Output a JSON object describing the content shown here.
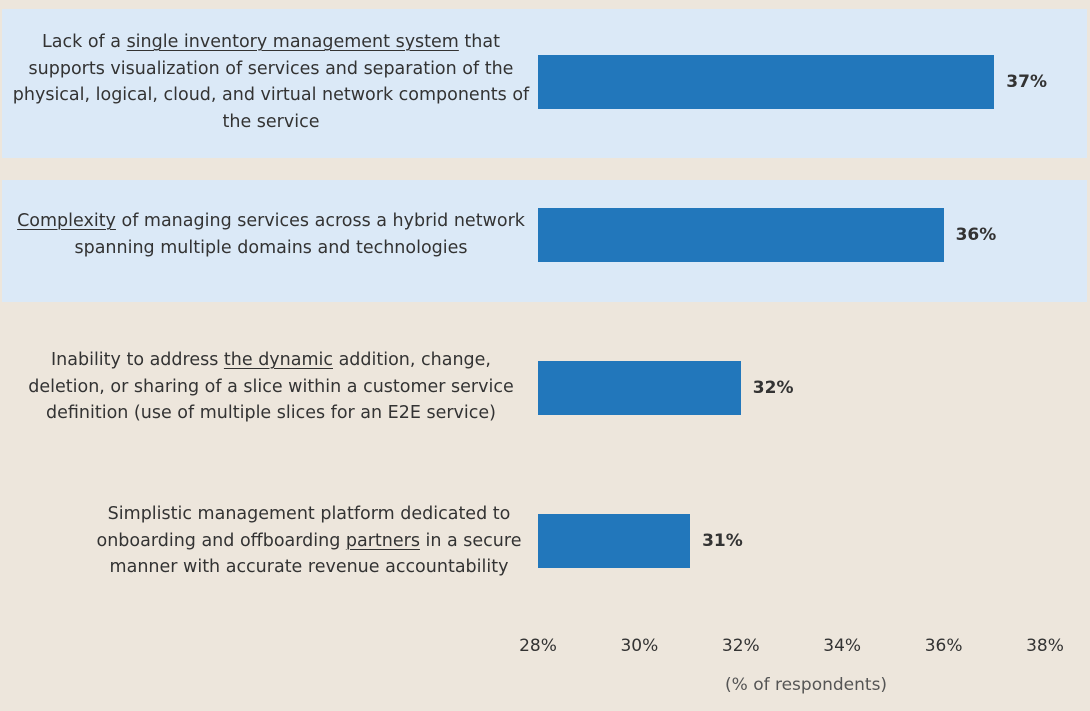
{
  "chart_data": {
    "type": "bar",
    "orientation": "horizontal",
    "categories": [
      {
        "pre": "Lack of a ",
        "underline": "single inventory management system",
        "post": " that supports visualization of services and separation of the physical, logical, cloud, and virtual network components of the service",
        "highlighted": true
      },
      {
        "pre": "",
        "underline": "Complexity",
        "post": " of managing services across a hybrid network spanning multiple domains and technologies",
        "highlighted": true
      },
      {
        "pre": "Inability to address ",
        "underline": "the dynamic",
        "post": " addition, change, deletion, or sharing of a slice within a customer service definition (use of multiple slices for an E2E service)",
        "highlighted": false
      },
      {
        "pre": "Simplistic management platform dedicated to onboarding and offboarding ",
        "underline": "partners",
        "post": " in a secure manner with accurate revenue accountability",
        "highlighted": false
      }
    ],
    "values": [
      37,
      36,
      32,
      31
    ],
    "value_labels": [
      "37%",
      "36%",
      "32%",
      "31%"
    ],
    "xlim": [
      28,
      38
    ],
    "xticks": [
      28,
      30,
      32,
      34,
      36,
      38
    ],
    "xtick_labels": [
      "28%",
      "30%",
      "32%",
      "34%",
      "36%",
      "38%"
    ],
    "xlabel": "(% of respondents)",
    "title": "",
    "grid": false,
    "bar_color": "#2277bb",
    "highlight_color": "#dbe9f7",
    "background_color": "#ede6dc"
  }
}
